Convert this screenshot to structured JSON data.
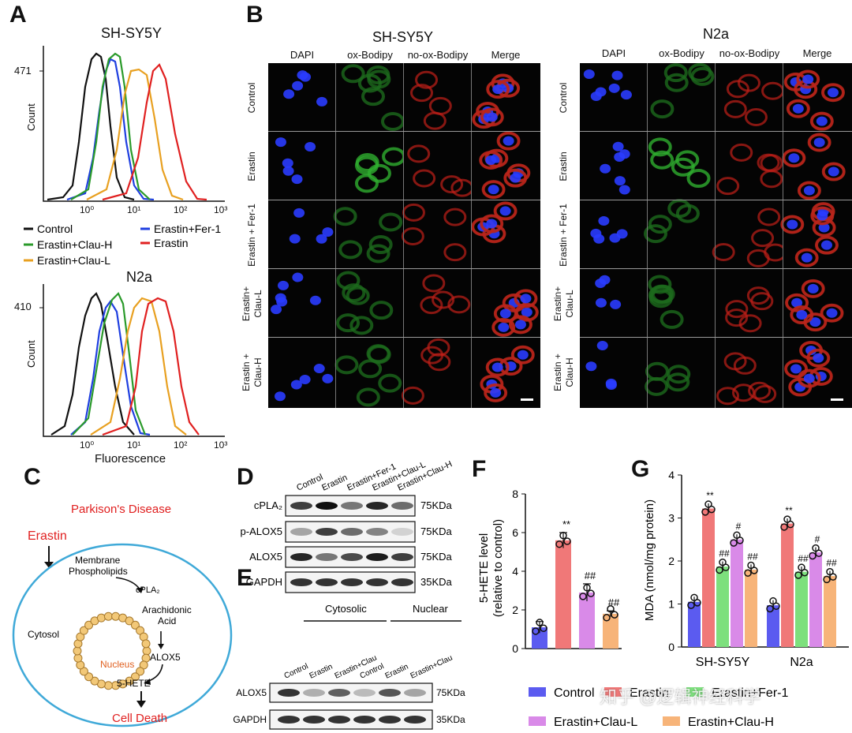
{
  "panel_labels": {
    "a": "A",
    "b": "B",
    "c": "C",
    "d": "D",
    "e": "E",
    "f": "F",
    "g": "G"
  },
  "panel_a": {
    "top_title": "SH-SY5Y",
    "bottom_title": "N2a",
    "top_ytick": "471",
    "bottom_ytick": "410",
    "ylabel": "Count",
    "xlabel": "Fluorescence",
    "xticks": [
      "10⁰",
      "10¹",
      "10²",
      "10³"
    ],
    "legend": [
      {
        "label": "Control",
        "color": "#111111"
      },
      {
        "label": "Erastin+Fer-1",
        "color": "#1f3fe0"
      },
      {
        "label": "Erastin+Clau-H",
        "color": "#2a9a2a"
      },
      {
        "label": "Erastin",
        "color": "#e02020"
      },
      {
        "label": "Erastin+Clau-L",
        "color": "#e8a020"
      }
    ]
  },
  "panel_b": {
    "left_title": "SH-SY5Y",
    "right_title": "N2a",
    "columns": [
      "DAPI",
      "ox-Bodipy",
      "no-ox-Bodipy",
      "Merge"
    ],
    "rows": [
      "Control",
      "Erastin",
      "Erastin + Fer-1",
      "Erastin+\nClau-L",
      "Erastin +\nClau-H"
    ]
  },
  "panel_c": {
    "disease": "Parkison's Disease",
    "erastin": "Erastin",
    "membrane": "Membrane\nPhospholipids",
    "cpla2": "cPLA₂",
    "arachidonic": "Arachidonic\nAcid",
    "nucleus": "Nucleus",
    "alox5": "ALOX5",
    "hete": "5-HETE",
    "cytosol": "Cytosol",
    "death": "Cell Death"
  },
  "panel_d": {
    "lanes": [
      "Control",
      "Erastin",
      "Erastin+Fer-1",
      "Erastin+Clau-L",
      "Erastin+Clau-H"
    ],
    "rows": [
      {
        "name": "cPLA₂",
        "size": "75KDa"
      },
      {
        "name": "p-ALOX5",
        "size": "75KDa"
      },
      {
        "name": "ALOX5",
        "size": "75KDa"
      },
      {
        "name": "GAPDH",
        "size": "35KDa"
      }
    ]
  },
  "panel_e": {
    "groups": [
      "Cytosolic",
      "Nuclear"
    ],
    "lanes": [
      "Control",
      "Erastin",
      "Erastin+Clau",
      "Control",
      "Erastin",
      "Erastin+Clau"
    ],
    "rows": [
      {
        "name": "ALOX5",
        "size": "75KDa"
      },
      {
        "name": "GAPDH",
        "size": "35KDa"
      }
    ]
  },
  "chart_data": [
    {
      "id": "F",
      "type": "bar",
      "ylabel": "5-HETE level\n(relative to control)",
      "ylim": [
        0,
        8
      ],
      "yticks": [
        "0",
        "2",
        "4",
        "6",
        "8"
      ],
      "categories": [
        "Control",
        "Erastin",
        "Erastin+Clau-L",
        "Erastin+Clau-H"
      ],
      "values": [
        1.1,
        5.6,
        2.9,
        1.8
      ],
      "errors": [
        0.3,
        0.4,
        0.45,
        0.15
      ],
      "colors": [
        "#5b5bf0",
        "#f07878",
        "#d98ae8",
        "#f7b479"
      ],
      "annotations": [
        "",
        "**",
        "##",
        "##"
      ]
    },
    {
      "id": "G",
      "type": "bar",
      "ylabel": "MDA (nmol/mg protein)",
      "ylim": [
        0,
        4
      ],
      "yticks": [
        "0",
        "1",
        "2",
        "3",
        "4"
      ],
      "categories": [
        "SH-SY5Y",
        "N2a"
      ],
      "series": [
        {
          "name": "Control",
          "color": "#5b5bf0",
          "values": [
            1.05,
            0.97
          ],
          "annot": [
            "",
            ""
          ]
        },
        {
          "name": "Erastin",
          "color": "#f07878",
          "values": [
            3.22,
            2.87
          ],
          "annot": [
            "**",
            "**"
          ]
        },
        {
          "name": "Erastin+Fer-1",
          "color": "#7de07d",
          "values": [
            1.87,
            1.75
          ],
          "annot": [
            "##",
            "##"
          ]
        },
        {
          "name": "Erastin+Clau-L",
          "color": "#d98ae8",
          "values": [
            2.5,
            2.2
          ],
          "annot": [
            "#",
            "#"
          ]
        },
        {
          "name": "Erastin+Clau-H",
          "color": "#f7b479",
          "values": [
            1.8,
            1.65
          ],
          "annot": [
            "##",
            "##"
          ]
        }
      ]
    }
  ],
  "watermark": "知乎 @逻辑神经科学"
}
